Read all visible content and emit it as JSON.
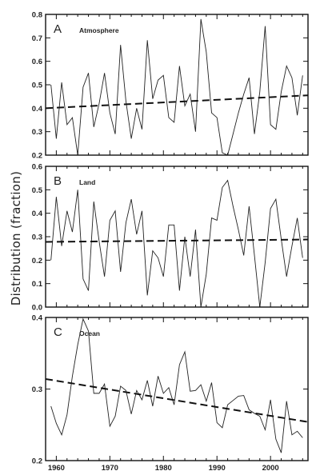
{
  "figure": {
    "ylabel": "Distribution (fraction)"
  },
  "chart_data": [
    {
      "type": "line",
      "panel_letter": "A",
      "title": "Atmosphere",
      "xlim": [
        1958,
        2007
      ],
      "ylim": [
        0.2,
        0.8
      ],
      "y_ticks": [
        "0.2",
        "0.3",
        "0.4",
        "0.5",
        "0.6",
        "0.7",
        "0.8"
      ],
      "x_tick_labels": [],
      "x": [
        1959,
        1960,
        1961,
        1962,
        1963,
        1964,
        1965,
        1966,
        1967,
        1968,
        1969,
        1970,
        1971,
        1972,
        1973,
        1974,
        1975,
        1976,
        1977,
        1978,
        1979,
        1980,
        1981,
        1982,
        1983,
        1984,
        1985,
        1986,
        1987,
        1988,
        1989,
        1990,
        1991,
        1992,
        1993,
        1994,
        1995,
        1996,
        1997,
        1998,
        1999,
        2000,
        2001,
        2002,
        2003,
        2004,
        2005,
        2006
      ],
      "values": [
        0.5,
        0.27,
        0.51,
        0.33,
        0.36,
        0.2,
        0.49,
        0.55,
        0.32,
        0.42,
        0.55,
        0.38,
        0.29,
        0.67,
        0.43,
        0.27,
        0.4,
        0.31,
        0.69,
        0.44,
        0.52,
        0.54,
        0.36,
        0.34,
        0.58,
        0.41,
        0.46,
        0.3,
        0.78,
        0.64,
        0.38,
        0.36,
        0.21,
        0.2,
        0.29,
        0.38,
        0.46,
        0.53,
        0.29,
        0.47,
        0.75,
        0.33,
        0.31,
        0.47,
        0.58,
        0.53,
        0.37,
        0.54
      ],
      "trend": {
        "x": [
          1958,
          2007
        ],
        "y": [
          0.4,
          0.455
        ]
      },
      "series_color": "#222222"
    },
    {
      "type": "line",
      "panel_letter": "B",
      "title": "Land",
      "xlim": [
        1958,
        2007
      ],
      "ylim": [
        0.0,
        0.6
      ],
      "y_ticks": [
        "0.0",
        "0.1",
        "0.2",
        "0.3",
        "0.4",
        "0.5",
        "0.6"
      ],
      "x_tick_labels": [],
      "x": [
        1959,
        1960,
        1961,
        1962,
        1963,
        1964,
        1965,
        1966,
        1967,
        1968,
        1969,
        1970,
        1971,
        1972,
        1973,
        1974,
        1975,
        1976,
        1977,
        1978,
        1979,
        1980,
        1981,
        1982,
        1983,
        1984,
        1985,
        1986,
        1987,
        1988,
        1989,
        1990,
        1991,
        1992,
        1993,
        1994,
        1995,
        1996,
        1997,
        1998,
        1999,
        2000,
        2001,
        2002,
        2003,
        2004,
        2005,
        2006
      ],
      "values": [
        0.2,
        0.47,
        0.26,
        0.41,
        0.32,
        0.5,
        0.12,
        0.07,
        0.45,
        0.28,
        0.13,
        0.37,
        0.41,
        0.15,
        0.36,
        0.46,
        0.31,
        0.41,
        0.05,
        0.24,
        0.21,
        0.13,
        0.35,
        0.35,
        0.07,
        0.3,
        0.13,
        0.33,
        0.0,
        0.14,
        0.38,
        0.37,
        0.51,
        0.54,
        0.43,
        0.33,
        0.22,
        0.43,
        0.22,
        0.0,
        0.19,
        0.42,
        0.46,
        0.29,
        0.13,
        0.26,
        0.38,
        0.21
      ],
      "trend": {
        "x": [
          1958,
          2007
        ],
        "y": [
          0.278,
          0.288
        ]
      },
      "series_color": "#222222"
    },
    {
      "type": "line",
      "panel_letter": "C",
      "title": "Ocean",
      "xlim": [
        1958,
        2007
      ],
      "ylim": [
        0.2,
        0.4
      ],
      "y_ticks": [
        "0.2",
        "0.3",
        "0.4"
      ],
      "x_tick_labels": [
        "1960",
        "1970",
        "1980",
        "1990",
        "2000"
      ],
      "x_ticks": [
        1960,
        1970,
        1980,
        1990,
        2000
      ],
      "x": [
        1959,
        1960,
        1961,
        1962,
        1963,
        1964,
        1965,
        1966,
        1967,
        1968,
        1969,
        1970,
        1971,
        1972,
        1973,
        1974,
        1975,
        1976,
        1977,
        1978,
        1979,
        1980,
        1981,
        1982,
        1983,
        1984,
        1985,
        1986,
        1987,
        1988,
        1989,
        1990,
        1991,
        1992,
        1993,
        1994,
        1995,
        1996,
        1997,
        1998,
        1999,
        2000,
        2001,
        2002,
        2003,
        2004,
        2005,
        2006
      ],
      "values": [
        0.276,
        0.252,
        0.236,
        0.264,
        0.318,
        0.362,
        0.398,
        0.381,
        0.294,
        0.294,
        0.307,
        0.248,
        0.262,
        0.304,
        0.298,
        0.265,
        0.298,
        0.285,
        0.312,
        0.276,
        0.318,
        0.294,
        0.302,
        0.278,
        0.334,
        0.352,
        0.297,
        0.298,
        0.306,
        0.283,
        0.309,
        0.253,
        0.246,
        0.278,
        0.284,
        0.29,
        0.291,
        0.271,
        0.266,
        0.262,
        0.243,
        0.285,
        0.23,
        0.211,
        0.283,
        0.236,
        0.241,
        0.232
      ],
      "trend": {
        "x": [
          1958,
          2007
        ],
        "y": [
          0.314,
          0.254
        ]
      },
      "series_color": "#222222"
    }
  ]
}
